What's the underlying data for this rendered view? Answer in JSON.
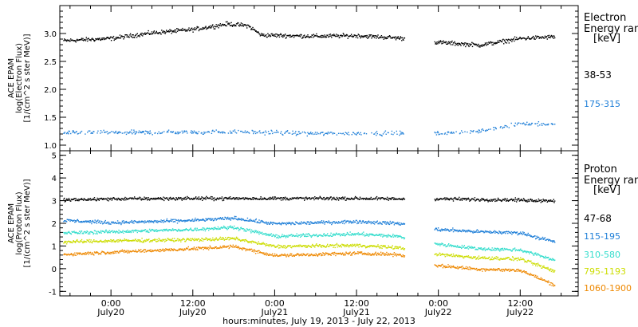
{
  "chart_data": [
    {
      "type": "scatter",
      "panel": "electron",
      "ylabel_lines": [
        "ACE EPAM",
        "log(Electron Flux)",
        "[1/(cm^2 s ster MeV)]"
      ],
      "ylim": [
        0.9,
        3.5
      ],
      "yticks": [
        1.0,
        1.5,
        2.0,
        2.5,
        3.0
      ],
      "ytick_labels": [
        "1.0",
        "1.5",
        "2.0",
        "2.5",
        "3.0"
      ],
      "legend_title": [
        "Electron",
        "Energy ran"
      ],
      "legend_unit": "[keV]",
      "data_gap": [
        "July 21 19:00",
        "July 21 23:20"
      ],
      "series": [
        {
          "name": "38-53",
          "color": "#000000",
          "points": [
            [
              "July 19 17:00",
              2.88
            ],
            [
              "July 20 00:00",
              2.92
            ],
            [
              "July 20 06:00",
              3.02
            ],
            [
              "July 20 12:00",
              3.08
            ],
            [
              "July 20 17:00",
              3.18
            ],
            [
              "July 20 20:00",
              3.15
            ],
            [
              "July 20 22:00",
              2.98
            ],
            [
              "July 21 06:00",
              2.96
            ],
            [
              "July 21 12:00",
              2.97
            ],
            [
              "July 21 18:00",
              2.93
            ],
            [
              "July 22 00:00",
              2.85
            ],
            [
              "July 22 06:00",
              2.8
            ],
            [
              "July 22 12:00",
              2.92
            ],
            [
              "July 22 17:00",
              2.95
            ]
          ]
        },
        {
          "name": "175-315",
          "color": "#1f7fd8",
          "points": [
            [
              "July 19 17:00",
              1.23
            ],
            [
              "July 20 06:00",
              1.24
            ],
            [
              "July 20 18:00",
              1.25
            ],
            [
              "July 21 06:00",
              1.22
            ],
            [
              "July 21 18:00",
              1.22
            ],
            [
              "July 22 00:00",
              1.22
            ],
            [
              "July 22 06:00",
              1.26
            ],
            [
              "July 22 12:00",
              1.4
            ],
            [
              "July 22 17:00",
              1.38
            ]
          ]
        }
      ]
    },
    {
      "type": "scatter",
      "panel": "proton",
      "ylabel_lines": [
        "ACE EPAM",
        "log(Proton Flux)",
        "[1/(cm^2 s ster MeV)]"
      ],
      "ylim": [
        -1.2,
        5.2
      ],
      "yticks": [
        -1,
        0,
        1,
        2,
        3,
        4,
        5
      ],
      "ytick_labels": [
        "-1",
        "0",
        "1",
        "2",
        "3",
        "4",
        "5"
      ],
      "legend_title": [
        "Proton",
        "Energy ran"
      ],
      "legend_unit": "[keV]",
      "data_gap": [
        "July 21 19:00",
        "July 21 23:20"
      ],
      "series": [
        {
          "name": "47-68",
          "color": "#000000",
          "points": [
            [
              "July 19 17:00",
              3.05
            ],
            [
              "July 20 00:00",
              3.1
            ],
            [
              "July 20 12:00",
              3.12
            ],
            [
              "July 21 00:00",
              3.12
            ],
            [
              "July 21 12:00",
              3.12
            ],
            [
              "July 21 18:00",
              3.1
            ],
            [
              "July 22 00:00",
              3.1
            ],
            [
              "July 22 12:00",
              3.05
            ],
            [
              "July 22 17:00",
              3.02
            ]
          ]
        },
        {
          "name": "115-195",
          "color": "#1f7fd8",
          "points": [
            [
              "July 19 17:00",
              2.15
            ],
            [
              "July 20 00:00",
              2.05
            ],
            [
              "July 20 12:00",
              2.15
            ],
            [
              "July 20 18:00",
              2.25
            ],
            [
              "July 21 00:00",
              2.0
            ],
            [
              "July 21 12:00",
              2.1
            ],
            [
              "July 21 18:00",
              2.02
            ],
            [
              "July 22 00:00",
              1.75
            ],
            [
              "July 22 06:00",
              1.65
            ],
            [
              "July 22 12:00",
              1.6
            ],
            [
              "July 22 17:00",
              1.2
            ]
          ]
        },
        {
          "name": "310-580",
          "color": "#33ddcc",
          "points": [
            [
              "July 19 17:00",
              1.6
            ],
            [
              "July 20 00:00",
              1.65
            ],
            [
              "July 20 12:00",
              1.75
            ],
            [
              "July 20 18:00",
              1.85
            ],
            [
              "July 21 00:00",
              1.45
            ],
            [
              "July 21 12:00",
              1.55
            ],
            [
              "July 21 18:00",
              1.45
            ],
            [
              "July 22 00:00",
              1.1
            ],
            [
              "July 22 06:00",
              0.9
            ],
            [
              "July 22 12:00",
              0.85
            ],
            [
              "July 22 17:00",
              0.4
            ]
          ]
        },
        {
          "name": "795-1193",
          "color": "#ccdd00",
          "points": [
            [
              "July 19 17:00",
              1.2
            ],
            [
              "July 20 00:00",
              1.25
            ],
            [
              "July 20 12:00",
              1.3
            ],
            [
              "July 20 18:00",
              1.35
            ],
            [
              "July 21 00:00",
              1.0
            ],
            [
              "July 21 12:00",
              1.05
            ],
            [
              "July 21 18:00",
              0.95
            ],
            [
              "July 22 00:00",
              0.65
            ],
            [
              "July 22 06:00",
              0.5
            ],
            [
              "July 22 12:00",
              0.45
            ],
            [
              "July 22 17:00",
              -0.1
            ]
          ]
        },
        {
          "name": "1060-1900",
          "color": "#ee8800",
          "points": [
            [
              "July 19 17:00",
              0.65
            ],
            [
              "July 20 00:00",
              0.75
            ],
            [
              "July 20 12:00",
              0.9
            ],
            [
              "July 20 18:00",
              1.0
            ],
            [
              "July 21 00:00",
              0.6
            ],
            [
              "July 21 12:00",
              0.7
            ],
            [
              "July 21 18:00",
              0.65
            ],
            [
              "July 22 00:00",
              0.15
            ],
            [
              "July 22 06:00",
              0.0
            ],
            [
              "July 22 12:00",
              -0.05
            ],
            [
              "July 22 17:00",
              -0.7
            ]
          ]
        }
      ]
    }
  ],
  "x_axis": {
    "range": [
      "July 19 16:30",
      "July 22 20:30"
    ],
    "ticks": [
      {
        "time": "July 20 00:00",
        "label": "0:00",
        "date": "July20"
      },
      {
        "time": "July 20 12:00",
        "label": "12:00",
        "date": "July20"
      },
      {
        "time": "July 21 00:00",
        "label": "0:00",
        "date": "July21"
      },
      {
        "time": "July 21 12:00",
        "label": "12:00",
        "date": "July21"
      },
      {
        "time": "July 22 00:00",
        "label": "0:00",
        "date": "July22"
      },
      {
        "time": "July 22 12:00",
        "label": "12:00",
        "date": "July22"
      }
    ],
    "label": "hours:minutes, July 19, 2013 - July 22, 2013"
  }
}
